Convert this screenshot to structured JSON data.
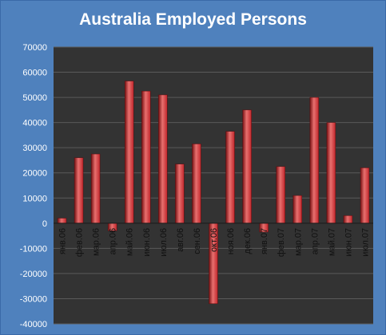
{
  "chart_data": {
    "type": "bar",
    "title": "Australia Employed Persons",
    "xlabel": "",
    "ylabel": "",
    "categories": [
      "янв.06",
      "фев.06",
      "мар.06",
      "апр.06",
      "май.06",
      "июн.06",
      "июл.06",
      "авг.06",
      "сен.06",
      "окт.06",
      "ноя.06",
      "дек.06",
      "янв.07",
      "фев.07",
      "мар.07",
      "апр.07",
      "май.07",
      "июн.07",
      "июл.07"
    ],
    "values": [
      2000,
      26000,
      27500,
      -3000,
      56500,
      52500,
      51000,
      23500,
      31500,
      -32000,
      36500,
      45000,
      -3500,
      22500,
      11000,
      50000,
      40000,
      3000,
      22000
    ],
    "ylim": [
      -40000,
      70000
    ],
    "yticks": [
      70000,
      60000,
      50000,
      40000,
      30000,
      20000,
      10000,
      0,
      -10000,
      -20000,
      -30000,
      -40000
    ],
    "grid": true,
    "legend": "none",
    "colors": {
      "background": "#4f81bd",
      "plot_area": "#333333",
      "bar": "#c0262b",
      "bar_highlight": "#e8706f",
      "bar_shadow": "#7a1214",
      "gridline": "#5a5a5a",
      "text": "#ffffff",
      "axis_text": "#111111"
    }
  }
}
